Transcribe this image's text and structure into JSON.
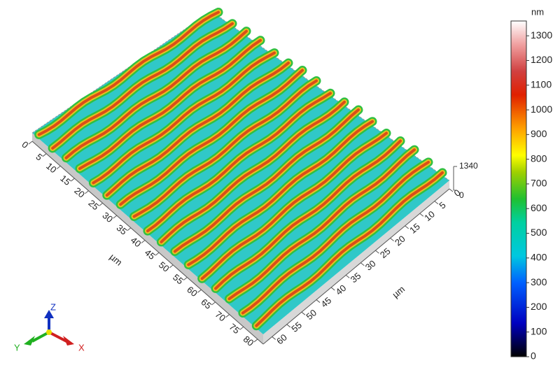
{
  "chart_data": {
    "type": "surface",
    "left_axis": {
      "label": "µm",
      "lim": [
        0,
        82
      ],
      "ticks": [
        0,
        5,
        10,
        15,
        20,
        25,
        30,
        35,
        40,
        45,
        50,
        55,
        60,
        65,
        70,
        75,
        80
      ]
    },
    "right_axis": {
      "label": "µm",
      "lim": [
        0,
        63
      ],
      "ticks": [
        0,
        5,
        10,
        15,
        20,
        25,
        30,
        35,
        40,
        45,
        50,
        55,
        60
      ]
    },
    "z_axis": {
      "lim": [
        0,
        1340
      ],
      "ticks": [
        0,
        1340
      ]
    },
    "colorbar": {
      "unit": "nm",
      "lim": [
        0,
        1360
      ],
      "ticks": [
        0,
        100,
        200,
        300,
        400,
        500,
        600,
        700,
        800,
        900,
        1000,
        1100,
        1200,
        1300
      ]
    },
    "triad": {
      "x": "X",
      "y": "Y",
      "z": "Z"
    }
  }
}
